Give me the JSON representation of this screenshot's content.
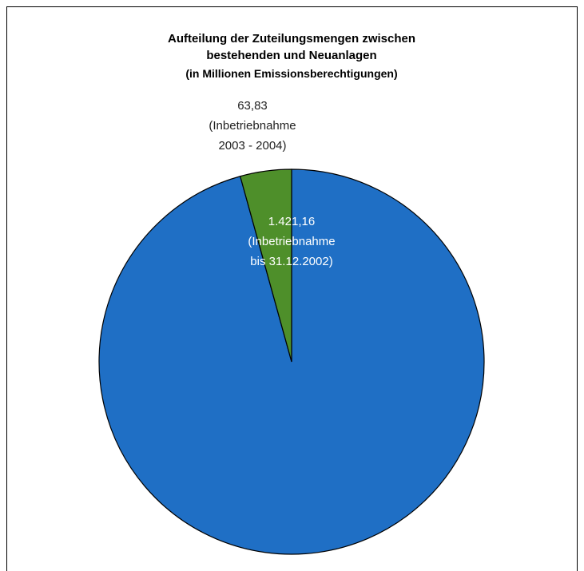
{
  "chart_data": {
    "type": "pie",
    "title": "Aufteilung der Zuteilungsmengen zwischen bestehenden und Neuanlagen",
    "subtitle": "(in Millionen Emissionsberechtigungen)",
    "categories": [
      "(Inbetriebnahme bis 31.12.2002)",
      "(Inbetriebnahme 2003 - 2004)"
    ],
    "values": [
      1421.16,
      63.83
    ],
    "value_labels": [
      "1.421,16",
      "63,83"
    ],
    "colors": [
      "#1f6fc5",
      "#4e8f2a"
    ]
  }
}
